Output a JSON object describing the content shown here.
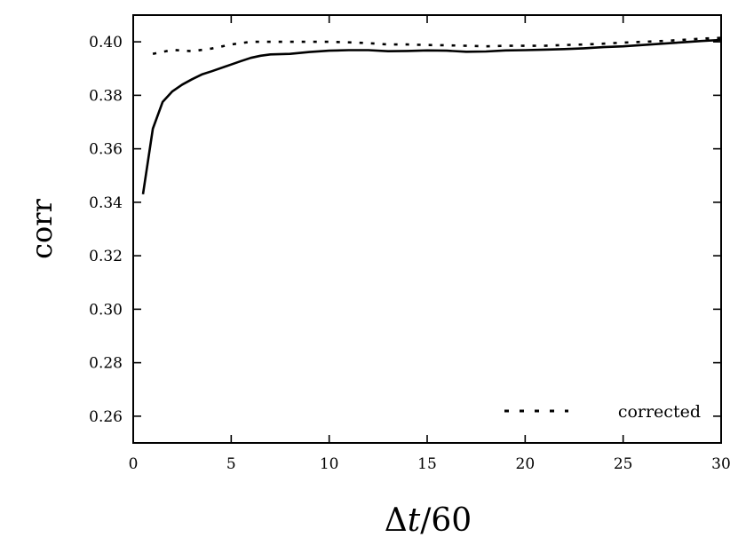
{
  "chart_data": {
    "type": "line",
    "xlabel_delta": "Δ",
    "xlabel_var": "t",
    "xlabel_rest": "/60",
    "ylabel": "corr",
    "xlim": [
      0,
      30
    ],
    "ylim": [
      0.25,
      0.41
    ],
    "x_ticks": [
      0,
      5,
      10,
      15,
      20,
      25,
      30
    ],
    "y_ticks": [
      0.26,
      0.28,
      0.3,
      0.32,
      0.34,
      0.36,
      0.38,
      0.4
    ],
    "y_tick_labels": [
      "0.26",
      "0.28",
      "0.30",
      "0.32",
      "0.34",
      "0.36",
      "0.38",
      "0.40"
    ],
    "grid": false,
    "legend_position": "bottom-right",
    "series": [
      {
        "style": "solid",
        "x": [
          0.5,
          1,
          1.5,
          2,
          2.5,
          3,
          3.5,
          4,
          5,
          5.5,
          6,
          6.5,
          7,
          8,
          9,
          10,
          11,
          12,
          13,
          14,
          15,
          16,
          17,
          18,
          19,
          20,
          21,
          22,
          23,
          24,
          25,
          26,
          27,
          28,
          29,
          30
        ],
        "values": [
          0.343,
          0.3675,
          0.3775,
          0.3815,
          0.384,
          0.386,
          0.3878,
          0.389,
          0.3915,
          0.3928,
          0.394,
          0.3948,
          0.3953,
          0.3955,
          0.3962,
          0.3967,
          0.3969,
          0.3969,
          0.3965,
          0.3966,
          0.3968,
          0.3967,
          0.3963,
          0.3964,
          0.3968,
          0.3969,
          0.3971,
          0.3973,
          0.3976,
          0.398,
          0.3983,
          0.3988,
          0.3993,
          0.3998,
          0.4003,
          0.4007
        ]
      },
      {
        "name": "corrected",
        "style": "dotted",
        "x": [
          1,
          2,
          3,
          4,
          5,
          6,
          7,
          8,
          9,
          10,
          11,
          12,
          13,
          14,
          15,
          16,
          17,
          18,
          19,
          20,
          21,
          22,
          23,
          24,
          25,
          26,
          27,
          28,
          29,
          30
        ],
        "values": [
          0.3955,
          0.397,
          0.3965,
          0.3975,
          0.399,
          0.4,
          0.4,
          0.4,
          0.4,
          0.4,
          0.3998,
          0.3995,
          0.399,
          0.399,
          0.3988,
          0.3987,
          0.3985,
          0.3983,
          0.3985,
          0.3985,
          0.3985,
          0.3988,
          0.399,
          0.3993,
          0.3997,
          0.4,
          0.4003,
          0.4007,
          0.4012,
          0.4015
        ]
      }
    ]
  }
}
